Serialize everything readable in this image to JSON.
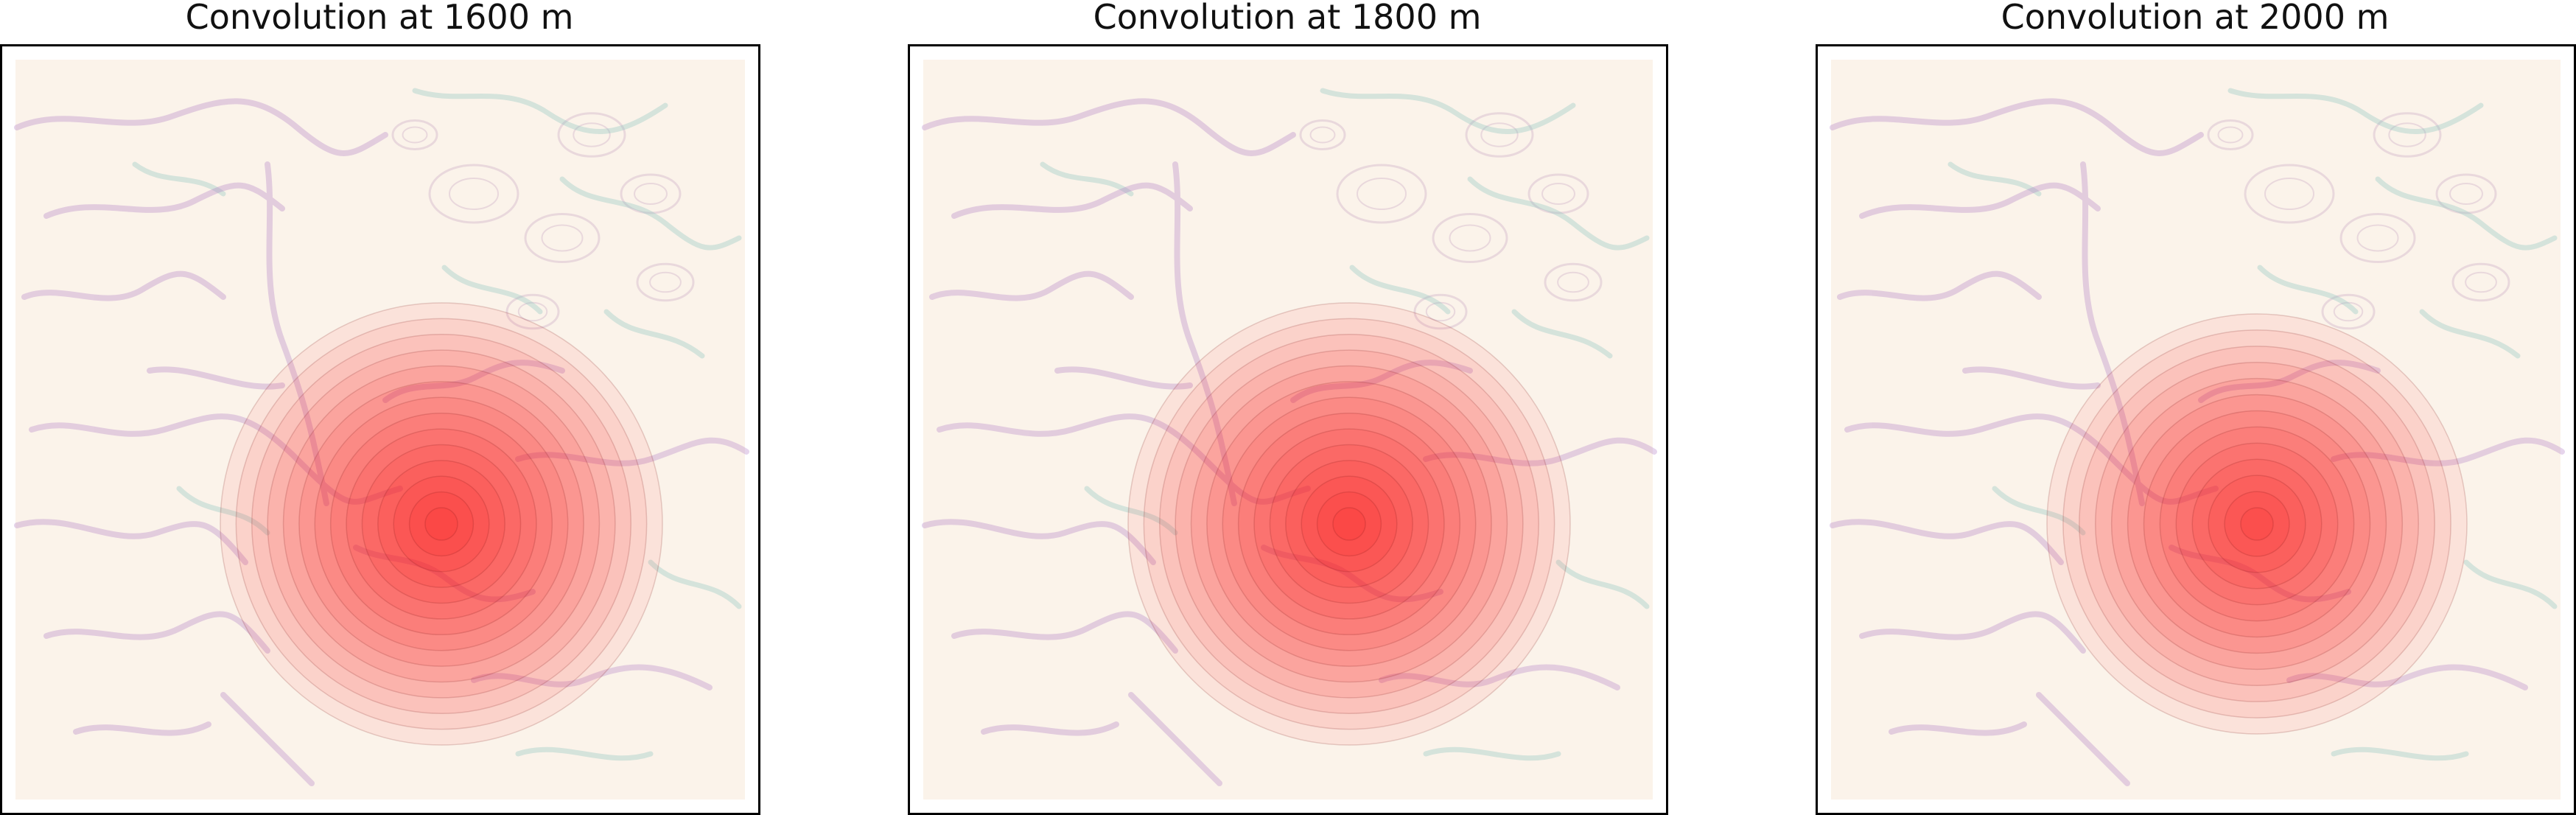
{
  "panels": [
    {
      "title": "Convolution at 1600 m",
      "altitude_m": 1600,
      "ring_count": 14
    },
    {
      "title": "Convolution at 1800 m",
      "altitude_m": 1800,
      "ring_count": 14
    },
    {
      "title": "Convolution at 2000 m",
      "altitude_m": 2000,
      "ring_count": 13
    }
  ],
  "colors": {
    "kernel": "#ff1a1a",
    "background": "#fbf3ea",
    "rivers": "#b07cc4",
    "valleys": "#8fc6c0"
  }
}
